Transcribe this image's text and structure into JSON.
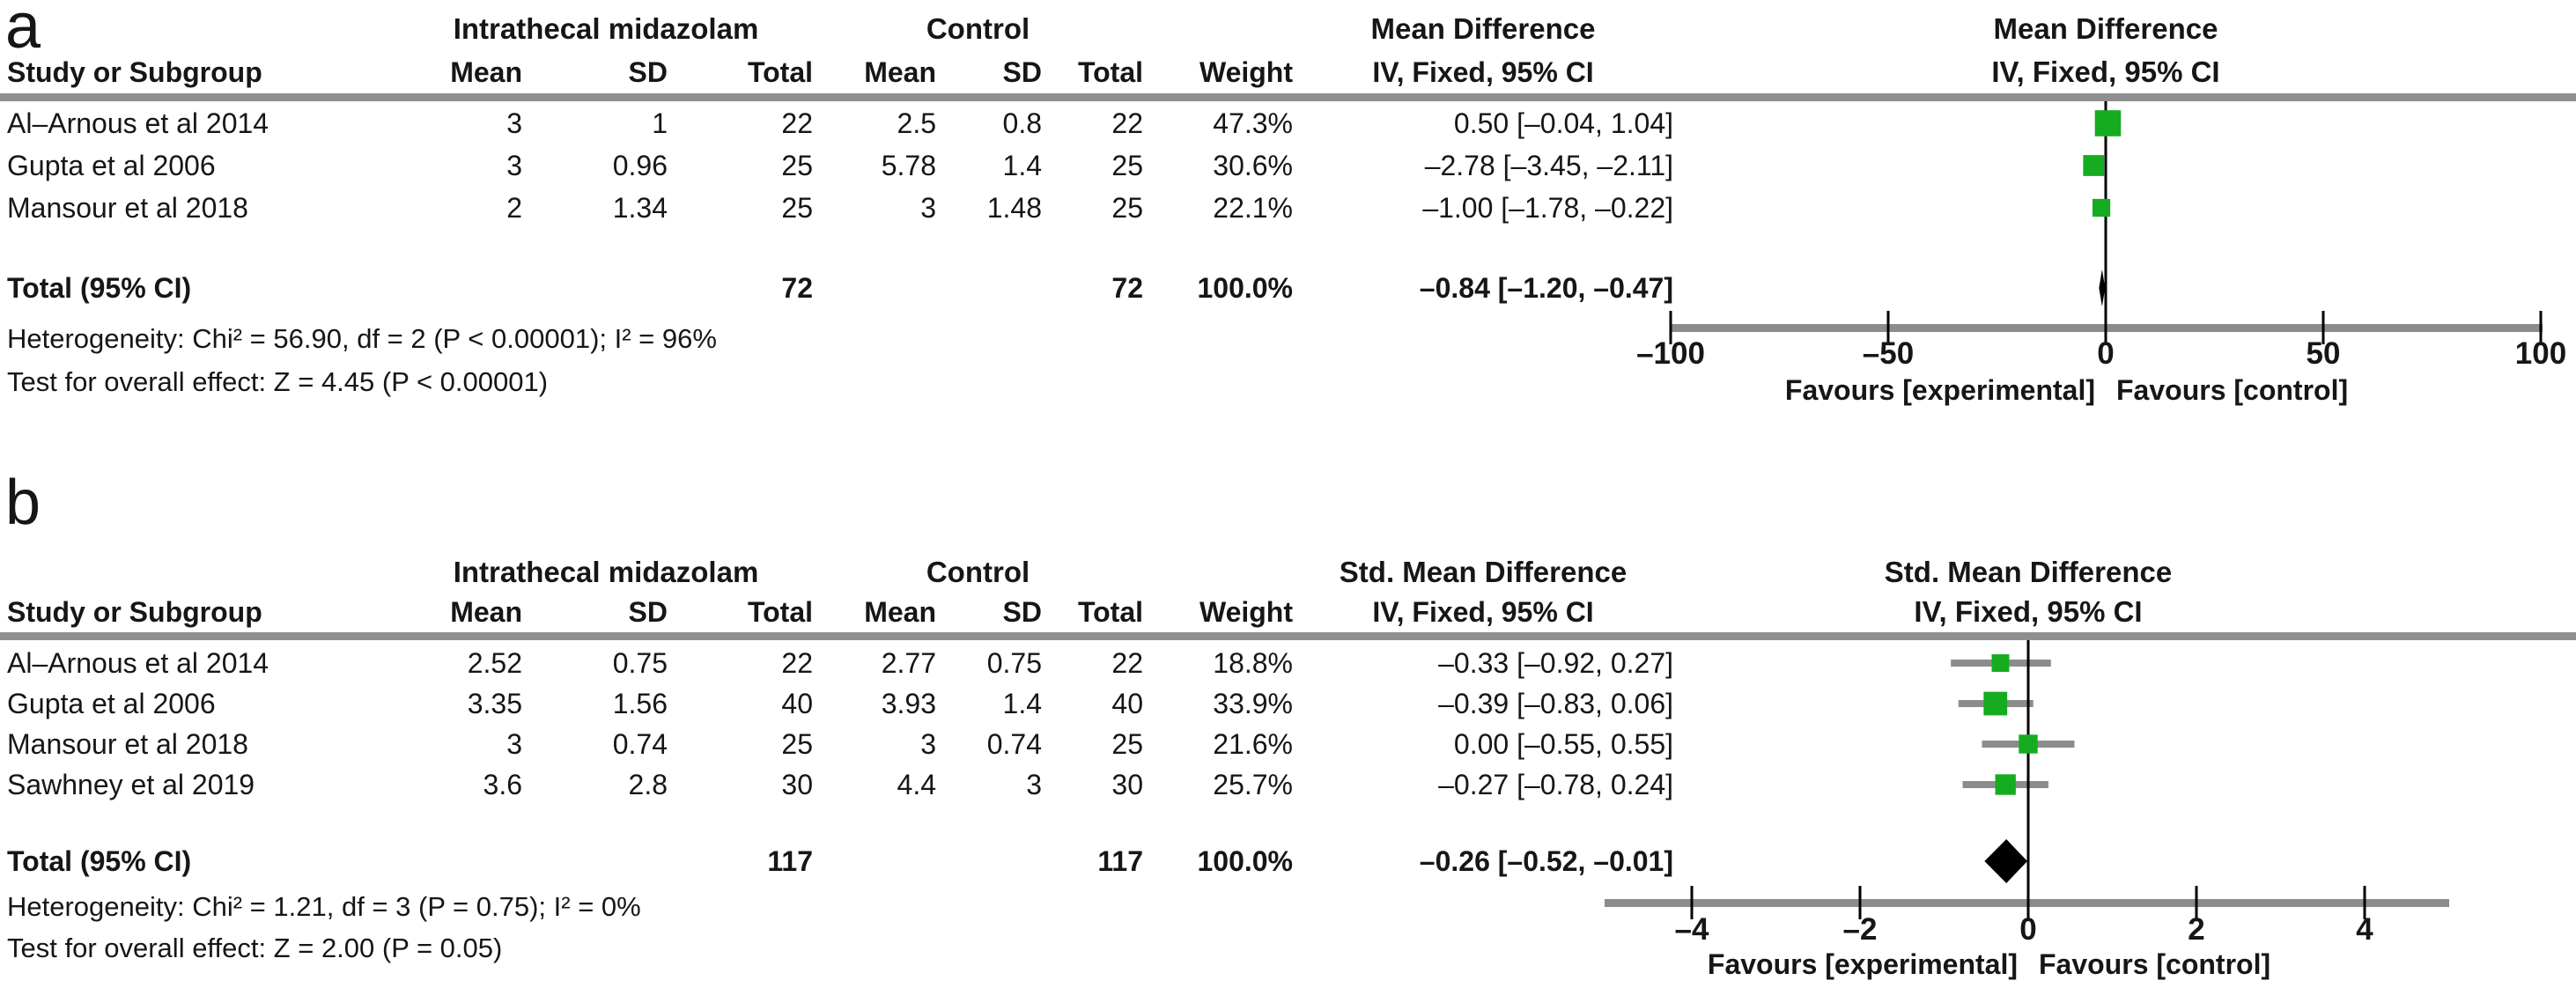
{
  "panels": [
    {
      "label": "a",
      "group_headers": {
        "experimental": "Intrathecal midazolam",
        "control": "Control",
        "effect": "Mean Difference"
      },
      "plot_header": {
        "line1": "Mean Difference",
        "line2": "IV, Fixed, 95% CI"
      },
      "column_headers": {
        "study": "Study or Subgroup",
        "mean_exp": "Mean",
        "sd_exp": "SD",
        "total_exp": "Total",
        "mean_ctl": "Mean",
        "sd_ctl": "SD",
        "total_ctl": "Total",
        "weight": "Weight",
        "ci": "IV, Fixed, 95% CI"
      },
      "studies": [
        {
          "name": "Al–Arnous et al 2014",
          "mean_exp": "3",
          "sd_exp": "1",
          "total_exp": "22",
          "mean_ctl": "2.5",
          "sd_ctl": "0.8",
          "total_ctl": "22",
          "weight": "47.3%",
          "ci_text": "0.50 [–0.04, 1.04]"
        },
        {
          "name": "Gupta et al 2006",
          "mean_exp": "3",
          "sd_exp": "0.96",
          "total_exp": "25",
          "mean_ctl": "5.78",
          "sd_ctl": "1.4",
          "total_ctl": "25",
          "weight": "30.6%",
          "ci_text": "–2.78 [–3.45, –2.11]"
        },
        {
          "name": "Mansour et al 2018",
          "mean_exp": "2",
          "sd_exp": "1.34",
          "total_exp": "25",
          "mean_ctl": "3",
          "sd_ctl": "1.48",
          "total_ctl": "25",
          "weight": "22.1%",
          "ci_text": "–1.00 [–1.78, –0.22]"
        }
      ],
      "total": {
        "label": "Total (95% CI)",
        "total_exp": "72",
        "total_ctl": "72",
        "weight": "100.0%",
        "ci_text": "–0.84 [–1.20, –0.47]"
      },
      "heterogeneity": "Heterogeneity: Chi² = 56.90, df = 2 (P < 0.00001); I² = 96%",
      "overall_effect": "Test for overall effect: Z = 4.45 (P < 0.00001)",
      "axis": {
        "tick_labels": [
          "–100",
          "–50",
          "0",
          "50",
          "100"
        ]
      },
      "favours_left": "Favours [experimental]",
      "favours_right": "Favours [control]"
    },
    {
      "label": "b",
      "group_headers": {
        "experimental": "Intrathecal midazolam",
        "control": "Control",
        "effect": "Std. Mean Difference"
      },
      "plot_header": {
        "line1": "Std. Mean Difference",
        "line2": "IV, Fixed, 95% CI"
      },
      "column_headers": {
        "study": "Study or Subgroup",
        "mean_exp": "Mean",
        "sd_exp": "SD",
        "total_exp": "Total",
        "mean_ctl": "Mean",
        "sd_ctl": "SD",
        "total_ctl": "Total",
        "weight": "Weight",
        "ci": "IV, Fixed, 95% CI"
      },
      "studies": [
        {
          "name": "Al–Arnous et al 2014",
          "mean_exp": "2.52",
          "sd_exp": "0.75",
          "total_exp": "22",
          "mean_ctl": "2.77",
          "sd_ctl": "0.75",
          "total_ctl": "22",
          "weight": "18.8%",
          "ci_text": "–0.33 [–0.92, 0.27]"
        },
        {
          "name": "Gupta et al 2006",
          "mean_exp": "3.35",
          "sd_exp": "1.56",
          "total_exp": "40",
          "mean_ctl": "3.93",
          "sd_ctl": "1.4",
          "total_ctl": "40",
          "weight": "33.9%",
          "ci_text": "–0.39 [–0.83, 0.06]"
        },
        {
          "name": "Mansour et al 2018",
          "mean_exp": "3",
          "sd_exp": "0.74",
          "total_exp": "25",
          "mean_ctl": "3",
          "sd_ctl": "0.74",
          "total_ctl": "25",
          "weight": "21.6%",
          "ci_text": "0.00 [–0.55, 0.55]"
        },
        {
          "name": "Sawhney et al 2019",
          "mean_exp": "3.6",
          "sd_exp": "2.8",
          "total_exp": "30",
          "mean_ctl": "4.4",
          "sd_ctl": "3",
          "total_ctl": "30",
          "weight": "25.7%",
          "ci_text": "–0.27 [–0.78, 0.24]"
        }
      ],
      "total": {
        "label": "Total (95% CI)",
        "total_exp": "117",
        "total_ctl": "117",
        "weight": "100.0%",
        "ci_text": "–0.26 [–0.52, –0.01]"
      },
      "heterogeneity": "Heterogeneity: Chi² = 1.21, df = 3 (P = 0.75); I² = 0%",
      "overall_effect": "Test for overall effect: Z = 2.00 (P = 0.05)",
      "axis": {
        "tick_labels": [
          "–4",
          "–2",
          "0",
          "2",
          "4"
        ]
      },
      "favours_left": "Favours [experimental]",
      "favours_right": "Favours [control]"
    }
  ],
  "colors": {
    "marker_green": "#16AC21",
    "diamond_black": "#000000",
    "line_gray": "#8c8c8c"
  },
  "chart_data": [
    {
      "type": "forest",
      "panel": "a",
      "title": "Mean Difference, IV, Fixed, 95% CI",
      "effect_measure": "Mean Difference (IV, Fixed, 95% CI)",
      "xlim": [
        -100,
        100
      ],
      "ticks": [
        -100,
        -50,
        0,
        50,
        100
      ],
      "xlabel_left": "Favours [experimental]",
      "xlabel_right": "Favours [control]",
      "studies": [
        {
          "name": "Al–Arnous et al 2014",
          "effect": 0.5,
          "ci_low": -0.04,
          "ci_high": 1.04,
          "weight_pct": 47.3
        },
        {
          "name": "Gupta et al 2006",
          "effect": -2.78,
          "ci_low": -3.45,
          "ci_high": -2.11,
          "weight_pct": 30.6
        },
        {
          "name": "Mansour et al 2018",
          "effect": -1.0,
          "ci_low": -1.78,
          "ci_high": -0.22,
          "weight_pct": 22.1
        }
      ],
      "total": {
        "effect": -0.84,
        "ci_low": -1.2,
        "ci_high": -0.47,
        "n_exp": 72,
        "n_ctl": 72
      },
      "heterogeneity": {
        "chi2": 56.9,
        "df": 2,
        "p": "< 0.00001",
        "i2_pct": 96
      },
      "overall": {
        "z": 4.45,
        "p": "< 0.00001"
      }
    },
    {
      "type": "forest",
      "panel": "b",
      "title": "Std. Mean Difference, IV, Fixed, 95% CI",
      "effect_measure": "Std. Mean Difference (IV, Fixed, 95% CI)",
      "xlim": [
        -4,
        4
      ],
      "ticks": [
        -4,
        -2,
        0,
        2,
        4
      ],
      "xlabel_left": "Favours [experimental]",
      "xlabel_right": "Favours [control]",
      "studies": [
        {
          "name": "Al–Arnous et al 2014",
          "effect": -0.33,
          "ci_low": -0.92,
          "ci_high": 0.27,
          "weight_pct": 18.8
        },
        {
          "name": "Gupta et al 2006",
          "effect": -0.39,
          "ci_low": -0.83,
          "ci_high": 0.06,
          "weight_pct": 33.9
        },
        {
          "name": "Mansour et al 2018",
          "effect": 0.0,
          "ci_low": -0.55,
          "ci_high": 0.55,
          "weight_pct": 21.6
        },
        {
          "name": "Sawhney et al 2019",
          "effect": -0.27,
          "ci_low": -0.78,
          "ci_high": 0.24,
          "weight_pct": 25.7
        }
      ],
      "total": {
        "effect": -0.26,
        "ci_low": -0.52,
        "ci_high": -0.01,
        "n_exp": 117,
        "n_ctl": 117
      },
      "heterogeneity": {
        "chi2": 1.21,
        "df": 3,
        "p": "= 0.75",
        "i2_pct": 0
      },
      "overall": {
        "z": 2.0,
        "p": "= 0.05"
      }
    }
  ]
}
